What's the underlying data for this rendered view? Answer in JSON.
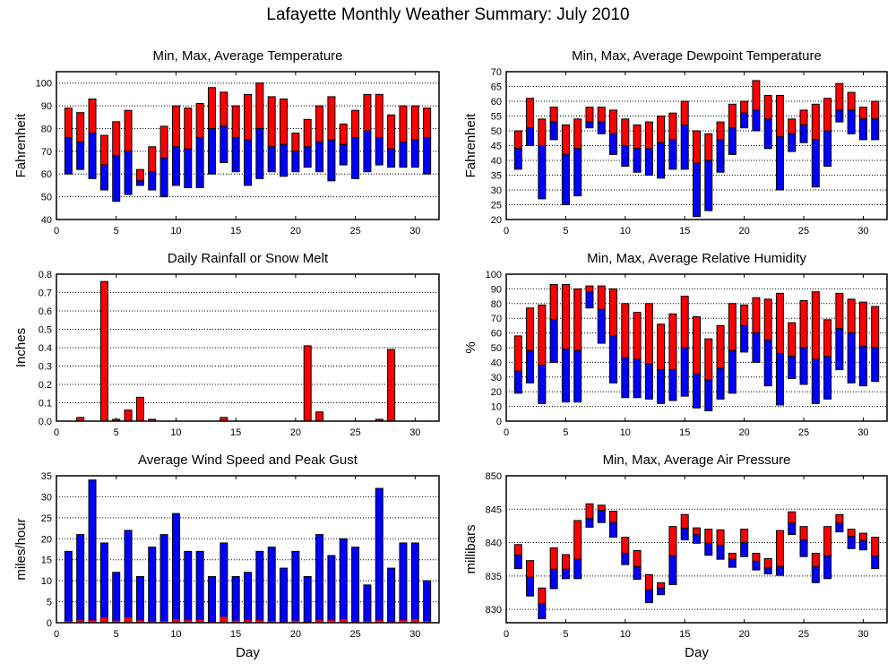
{
  "page_title": "Lafayette Monthly Weather Summary: July 2010",
  "colors": {
    "max_or_gust": "#ff0000",
    "avg_or_min": "#0000ff",
    "rain": "#ff0000"
  },
  "chart_data": [
    {
      "id": "temp",
      "type": "bar",
      "subtype": "floating-range",
      "title": "Min, Max, Average Temperature",
      "xlabel": "",
      "ylabel": "Fahrenheit",
      "xlim": [
        0,
        32
      ],
      "ylim": [
        40,
        105
      ],
      "xticks": [
        0,
        5,
        10,
        15,
        20,
        25,
        30
      ],
      "yticks": [
        40,
        50,
        60,
        70,
        80,
        90,
        100
      ],
      "grid": true,
      "x": [
        1,
        2,
        3,
        4,
        5,
        6,
        7,
        8,
        9,
        10,
        11,
        12,
        13,
        14,
        15,
        16,
        17,
        18,
        19,
        20,
        21,
        22,
        23,
        24,
        25,
        26,
        27,
        28,
        29,
        30,
        31
      ],
      "series": [
        {
          "name": "Min",
          "values": [
            60,
            62,
            58,
            53,
            48,
            51,
            55,
            53,
            50,
            55,
            54,
            54,
            60,
            65,
            61,
            55,
            58,
            61,
            59,
            61,
            63,
            61,
            57,
            64,
            58,
            61,
            64,
            63,
            63,
            63,
            60
          ]
        },
        {
          "name": "Average",
          "values": [
            76,
            74,
            78,
            64,
            68,
            70,
            57,
            61,
            67,
            72,
            71,
            76,
            80,
            81,
            76,
            75,
            80,
            72,
            73,
            70,
            72,
            74,
            75,
            73,
            76,
            79,
            76,
            71,
            74,
            75,
            76
          ]
        },
        {
          "name": "Max",
          "values": [
            89,
            87,
            93,
            77,
            83,
            88,
            62,
            72,
            81,
            90,
            89,
            91,
            98,
            96,
            90,
            95,
            100,
            94,
            93,
            78,
            84,
            90,
            94,
            82,
            88,
            95,
            95,
            86,
            90,
            90,
            89
          ]
        }
      ]
    },
    {
      "id": "dewpoint",
      "type": "bar",
      "subtype": "floating-range",
      "title": "Min, Max, Average Dewpoint Temperature",
      "xlabel": "",
      "ylabel": "Fahrenheit",
      "xlim": [
        0,
        32
      ],
      "ylim": [
        20,
        70
      ],
      "xticks": [
        0,
        5,
        10,
        15,
        20,
        25,
        30
      ],
      "yticks": [
        20,
        25,
        30,
        35,
        40,
        45,
        50,
        55,
        60,
        65,
        70
      ],
      "grid": true,
      "x": [
        1,
        2,
        3,
        4,
        5,
        6,
        7,
        8,
        9,
        10,
        11,
        12,
        13,
        14,
        15,
        16,
        17,
        18,
        19,
        20,
        21,
        22,
        23,
        24,
        25,
        26,
        27,
        28,
        29,
        30,
        31
      ],
      "series": [
        {
          "name": "Min",
          "values": [
            37,
            45,
            27,
            47,
            25,
            28,
            51,
            49,
            42,
            38,
            36,
            35,
            34,
            37,
            37,
            21,
            23,
            36,
            42,
            51,
            50,
            44,
            30,
            43,
            46,
            31,
            38,
            53,
            49,
            47,
            47
          ]
        },
        {
          "name": "Average",
          "values": [
            44,
            51,
            45,
            53,
            42,
            44,
            53,
            53,
            49,
            45,
            44,
            44,
            46,
            47,
            52,
            39,
            40,
            47,
            51,
            56,
            57,
            54,
            48,
            49,
            52,
            47,
            50,
            57,
            57,
            54,
            54
          ]
        },
        {
          "name": "Max",
          "values": [
            50,
            61,
            54,
            58,
            52,
            54,
            58,
            58,
            57,
            54,
            52,
            53,
            55,
            56,
            60,
            50,
            49,
            53,
            59,
            60,
            67,
            62,
            62,
            54,
            57,
            59,
            61,
            66,
            63,
            58,
            60
          ]
        }
      ]
    },
    {
      "id": "rain",
      "type": "bar",
      "title": "Daily Rainfall or Snow Melt",
      "xlabel": "",
      "ylabel": "Inches",
      "xlim": [
        0,
        32
      ],
      "ylim": [
        0,
        0.8
      ],
      "xticks": [
        0,
        5,
        10,
        15,
        20,
        25,
        30
      ],
      "yticks": [
        "0.0",
        "0.1",
        "0.2",
        "0.3",
        "0.4",
        "0.5",
        "0.6",
        "0.7",
        "0.8"
      ],
      "grid": true,
      "x": [
        1,
        2,
        3,
        4,
        5,
        6,
        7,
        8,
        9,
        10,
        11,
        12,
        13,
        14,
        15,
        16,
        17,
        18,
        19,
        20,
        21,
        22,
        23,
        24,
        25,
        26,
        27,
        28,
        29,
        30,
        31
      ],
      "values": [
        0,
        0.02,
        0,
        0.76,
        0.01,
        0.06,
        0.13,
        0.01,
        0,
        0,
        0,
        0,
        0,
        0.02,
        0,
        0,
        0,
        0,
        0,
        0,
        0.41,
        0.05,
        0,
        0,
        0,
        0,
        0.01,
        0.39,
        0,
        0,
        0
      ]
    },
    {
      "id": "humidity",
      "type": "bar",
      "subtype": "floating-range",
      "title": "Min, Max, Average Relative Humidity",
      "xlabel": "",
      "ylabel": "%",
      "xlim": [
        0,
        32
      ],
      "ylim": [
        0,
        100
      ],
      "xticks": [
        0,
        5,
        10,
        15,
        20,
        25,
        30
      ],
      "yticks": [
        0,
        10,
        20,
        30,
        40,
        50,
        60,
        70,
        80,
        90,
        100
      ],
      "grid": true,
      "x": [
        1,
        2,
        3,
        4,
        5,
        6,
        7,
        8,
        9,
        10,
        11,
        12,
        13,
        14,
        15,
        16,
        17,
        18,
        19,
        20,
        21,
        22,
        23,
        24,
        25,
        26,
        27,
        28,
        29,
        30,
        31
      ],
      "series": [
        {
          "name": "Min",
          "values": [
            19,
            26,
            12,
            40,
            13,
            13,
            77,
            53,
            26,
            16,
            16,
            15,
            12,
            14,
            17,
            9,
            7,
            15,
            19,
            47,
            40,
            24,
            11,
            29,
            25,
            12,
            15,
            35,
            26,
            24,
            27
          ]
        },
        {
          "name": "Average",
          "values": [
            34,
            48,
            38,
            69,
            49,
            48,
            88,
            76,
            58,
            43,
            42,
            39,
            35,
            35,
            50,
            32,
            28,
            36,
            48,
            65,
            60,
            55,
            46,
            44,
            50,
            42,
            44,
            63,
            60,
            51,
            50
          ]
        },
        {
          "name": "Max",
          "values": [
            58,
            77,
            79,
            93,
            93,
            90,
            92,
            92,
            90,
            80,
            74,
            80,
            66,
            73,
            85,
            71,
            56,
            65,
            80,
            79,
            84,
            83,
            87,
            67,
            82,
            88,
            69,
            87,
            83,
            81,
            78
          ]
        }
      ]
    },
    {
      "id": "wind",
      "type": "bar",
      "subtype": "overlay",
      "title": "Average Wind Speed and Peak Gust",
      "xlabel": "Day",
      "ylabel": "miles/hour",
      "xlim": [
        0,
        32
      ],
      "ylim": [
        0,
        35
      ],
      "xticks": [
        0,
        5,
        10,
        15,
        20,
        25,
        30
      ],
      "yticks": [
        0,
        5,
        10,
        15,
        20,
        25,
        30,
        35
      ],
      "grid": true,
      "x": [
        1,
        2,
        3,
        4,
        5,
        6,
        7,
        8,
        9,
        10,
        11,
        12,
        13,
        14,
        15,
        16,
        17,
        18,
        19,
        20,
        21,
        22,
        23,
        24,
        25,
        26,
        27,
        28,
        29,
        30,
        31
      ],
      "series": [
        {
          "name": "Peak Gust",
          "values": [
            17,
            21,
            34,
            19,
            12,
            22,
            11,
            18,
            21,
            26,
            17,
            17,
            11,
            19,
            11,
            12,
            17,
            18,
            13,
            17,
            11,
            21,
            16,
            20,
            18,
            9,
            32,
            13,
            19,
            19,
            10
          ]
        },
        {
          "name": "Average Wind Speed",
          "values": [
            0.4,
            0.6,
            0.6,
            1.2,
            0.5,
            1.2,
            0.6,
            0.4,
            0.4,
            0.8,
            0.6,
            0.6,
            0.2,
            1.4,
            0.5,
            0.6,
            0.6,
            0.4,
            0.2,
            0.5,
            0.2,
            0.6,
            0.6,
            0.8,
            0.2,
            0.4,
            0.6,
            0.2,
            0.6,
            0.8,
            0.4
          ]
        }
      ]
    },
    {
      "id": "pressure",
      "type": "bar",
      "subtype": "floating-range",
      "title": "Min, Max, Average Air Pressure",
      "xlabel": "Day",
      "ylabel": "millibars",
      "xlim": [
        0,
        32
      ],
      "ylim": [
        828,
        850
      ],
      "xticks": [
        0,
        5,
        10,
        15,
        20,
        25,
        30
      ],
      "yticks": [
        830,
        835,
        840,
        845,
        850
      ],
      "grid": true,
      "x": [
        1,
        2,
        3,
        4,
        5,
        6,
        7,
        8,
        9,
        10,
        11,
        12,
        13,
        14,
        15,
        16,
        17,
        18,
        19,
        20,
        21,
        22,
        23,
        24,
        25,
        26,
        27,
        28,
        29,
        30,
        31
      ],
      "series": [
        {
          "name": "Min",
          "values": [
            836.1,
            832.0,
            828.6,
            833.1,
            834.6,
            834.6,
            842.3,
            843.0,
            840.8,
            836.7,
            834.5,
            831.0,
            832.2,
            833.7,
            840.4,
            839.9,
            838.1,
            837.5,
            836.3,
            837.9,
            835.9,
            835.3,
            835.1,
            841.2,
            837.9,
            834.0,
            834.6,
            841.6,
            839.1,
            838.9,
            836.1
          ]
        },
        {
          "name": "Average",
          "values": [
            838.1,
            834.8,
            830.8,
            836.0,
            836.0,
            837.5,
            843.6,
            844.8,
            843.0,
            838.4,
            836.4,
            832.9,
            833.2,
            838.0,
            842.1,
            841.2,
            839.9,
            839.6,
            837.5,
            840.0,
            837.2,
            836.2,
            836.4,
            842.9,
            840.4,
            836.4,
            838.0,
            842.9,
            840.9,
            840.3,
            838.0
          ]
        },
        {
          "name": "Max",
          "values": [
            839.7,
            837.3,
            833.2,
            839.2,
            838.2,
            843.3,
            845.8,
            845.6,
            844.7,
            840.8,
            838.8,
            835.2,
            834.0,
            842.4,
            844.2,
            842.2,
            842.0,
            841.9,
            838.4,
            842.0,
            838.4,
            837.6,
            841.8,
            844.6,
            842.4,
            838.4,
            842.4,
            844.2,
            842.0,
            841.4,
            840.8
          ]
        }
      ]
    }
  ]
}
